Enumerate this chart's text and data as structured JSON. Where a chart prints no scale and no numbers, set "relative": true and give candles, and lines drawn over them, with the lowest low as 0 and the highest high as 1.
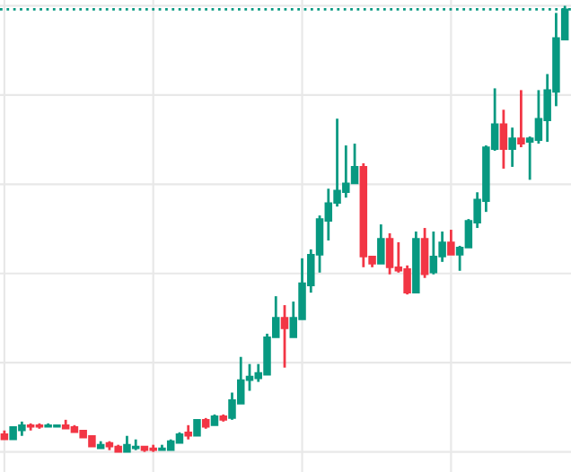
{
  "chart_data": {
    "type": "candlestick",
    "relative": true,
    "grid": true,
    "categories": [
      null,
      null,
      null,
      null,
      null,
      null,
      null,
      null,
      null,
      null,
      null,
      null,
      null,
      null,
      null,
      null,
      null,
      null,
      null,
      null,
      null,
      null,
      null,
      null,
      null,
      null,
      null,
      null,
      null,
      null,
      null,
      null,
      null,
      null,
      null,
      null,
      null,
      null,
      null,
      null,
      null,
      null,
      null,
      null,
      null,
      null,
      null,
      null,
      null,
      null,
      null,
      null,
      null,
      null,
      null,
      null,
      null,
      null,
      null,
      null,
      null,
      null,
      null,
      null,
      null
    ],
    "ohlc": [
      [
        0.04,
        0.048,
        0.028,
        0.028
      ],
      [
        0.028,
        0.056,
        0.028,
        0.056
      ],
      [
        0.048,
        0.068,
        0.036,
        0.06
      ],
      [
        0.06,
        0.064,
        0.048,
        0.056
      ],
      [
        0.06,
        0.064,
        0.052,
        0.056
      ],
      [
        0.056,
        0.064,
        0.056,
        0.06
      ],
      [
        0.056,
        0.06,
        0.056,
        0.06
      ],
      [
        0.06,
        0.072,
        0.052,
        0.052
      ],
      [
        0.056,
        0.06,
        0.044,
        0.044
      ],
      [
        0.048,
        0.048,
        0.032,
        0.032
      ],
      [
        0.036,
        0.036,
        0.012,
        0.012
      ],
      [
        0.008,
        0.024,
        0.008,
        0.016
      ],
      [
        0.02,
        0.024,
        0.004,
        0.012
      ],
      [
        0.012,
        0.016,
        0,
        0
      ],
      [
        0,
        0.036,
        0,
        0.016
      ],
      [
        0.008,
        0.028,
        0.004,
        0.012
      ],
      [
        0.012,
        0.012,
        0,
        0.004
      ],
      [
        0.008,
        0.016,
        0,
        0.004
      ],
      [
        0.004,
        0.016,
        0.004,
        0.008
      ],
      [
        0.004,
        0.028,
        0.004,
        0.024
      ],
      [
        0.02,
        0.044,
        0.02,
        0.04
      ],
      [
        0.044,
        0.06,
        0.028,
        0.036
      ],
      [
        0.036,
        0.072,
        0.036,
        0.072
      ],
      [
        0.072,
        0.076,
        0.052,
        0.056
      ],
      [
        0.06,
        0.084,
        0.06,
        0.08
      ],
      [
        0.08,
        0.084,
        0.068,
        0.072
      ],
      [
        0.076,
        0.133,
        0.072,
        0.116
      ],
      [
        0.108,
        0.213,
        0.108,
        0.161
      ],
      [
        0.161,
        0.197,
        0.137,
        0.169
      ],
      [
        0.165,
        0.197,
        0.157,
        0.177
      ],
      [
        0.173,
        0.265,
        0.173,
        0.257
      ],
      [
        0.257,
        0.349,
        0.257,
        0.301
      ],
      [
        0.301,
        0.329,
        0.189,
        0.277
      ],
      [
        0.257,
        0.337,
        0.257,
        0.301
      ],
      [
        0.297,
        0.434,
        0.297,
        0.378
      ],
      [
        0.373,
        0.454,
        0.357,
        0.442
      ],
      [
        0.442,
        0.53,
        0.402,
        0.522
      ],
      [
        0.518,
        0.59,
        0.474,
        0.558
      ],
      [
        0.558,
        0.747,
        0.55,
        0.586
      ],
      [
        0.582,
        0.687,
        0.57,
        0.602
      ],
      [
        0.602,
        0.691,
        0.602,
        0.639
      ],
      [
        0.639,
        0.647,
        0.414,
        0.438
      ],
      [
        0.438,
        0.438,
        0.414,
        0.422
      ],
      [
        0.422,
        0.51,
        0.422,
        0.478
      ],
      [
        0.478,
        0.49,
        0.398,
        0.414
      ],
      [
        0.414,
        0.47,
        0.402,
        0.406
      ],
      [
        0.41,
        0.418,
        0.353,
        0.357
      ],
      [
        0.357,
        0.494,
        0.357,
        0.478
      ],
      [
        0.478,
        0.502,
        0.39,
        0.398
      ],
      [
        0.402,
        0.494,
        0.398,
        0.438
      ],
      [
        0.438,
        0.494,
        0.426,
        0.47
      ],
      [
        0.47,
        0.498,
        0.442,
        0.442
      ],
      [
        0.442,
        0.462,
        0.406,
        0.458
      ],
      [
        0.458,
        0.522,
        0.458,
        0.518
      ],
      [
        0.514,
        0.582,
        0.502,
        0.566
      ],
      [
        0.562,
        0.687,
        0.538,
        0.683
      ],
      [
        0.679,
        0.815,
        0.675,
        0.735
      ],
      [
        0.735,
        0.767,
        0.635,
        0.679
      ],
      [
        0.679,
        0.727,
        0.639,
        0.703
      ],
      [
        0.703,
        0.811,
        0.683,
        0.691
      ],
      [
        0.695,
        0.707,
        0.61,
        0.703
      ],
      [
        0.699,
        0.811,
        0.691,
        0.747
      ],
      [
        0.743,
        0.847,
        0.695,
        0.811
      ],
      [
        0.807,
        0.984,
        0.775,
        0.928
      ],
      [
        0.924,
        1,
        0.924,
        0.992
      ]
    ],
    "colors": [
      "#f23645",
      "#089981",
      "#089981",
      "#f23645",
      "#f23645",
      "#089981",
      "#089981",
      "#f23645",
      "#f23645",
      "#f23645",
      "#f23645",
      "#089981",
      "#f23645",
      "#f23645",
      "#089981",
      "#089981",
      "#f23645",
      "#f23645",
      "#089981",
      "#089981",
      "#089981",
      "#f23645",
      "#089981",
      "#f23645",
      "#089981",
      "#f23645",
      "#089981",
      "#089981",
      "#089981",
      "#089981",
      "#089981",
      "#089981",
      "#f23645",
      "#089981",
      "#089981",
      "#089981",
      "#089981",
      "#089981",
      "#089981",
      "#089981",
      "#089981",
      "#f23645",
      "#f23645",
      "#089981",
      "#f23645",
      "#f23645",
      "#f23645",
      "#089981",
      "#f23645",
      "#089981",
      "#089981",
      "#f23645",
      "#089981",
      "#089981",
      "#089981",
      "#089981",
      "#089981",
      "#f23645",
      "#089981",
      "#f23645",
      "#089981",
      "#089981",
      "#089981",
      "#089981",
      "#089981"
    ],
    "ref_lines": [
      {
        "axis": "y",
        "value": 0.992,
        "color": "#089981",
        "line_style": "dotted"
      }
    ]
  }
}
